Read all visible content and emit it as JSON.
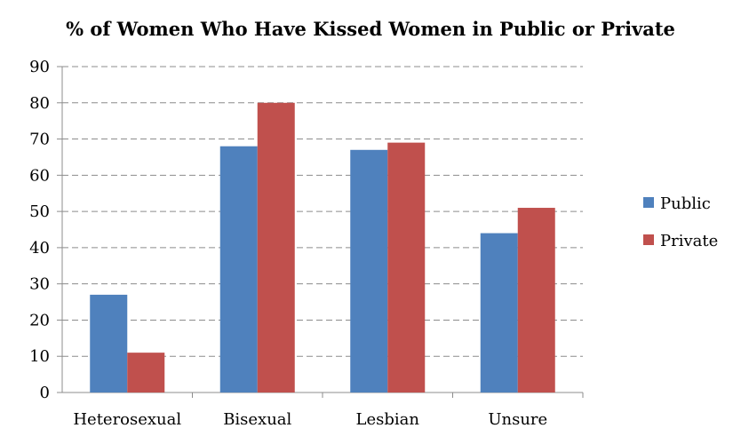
{
  "chart_data": {
    "type": "bar",
    "title": "% of Women Who Have Kissed Women in Public or Private",
    "xlabel": "",
    "ylabel": "",
    "categories": [
      "Heterosexual",
      "Bisexual",
      "Lesbian",
      "Unsure"
    ],
    "series": [
      {
        "name": "Public",
        "values": [
          27,
          68,
          67,
          44
        ],
        "color": "#4f81bd"
      },
      {
        "name": "Private",
        "values": [
          11,
          80,
          69,
          51
        ],
        "color": "#c0504d"
      }
    ],
    "ylim": [
      0,
      90
    ],
    "yticks": [
      "0",
      "10",
      "20",
      "30",
      "40",
      "50",
      "60",
      "70",
      "80",
      "90"
    ],
    "grid": true,
    "legend_position": "right"
  }
}
